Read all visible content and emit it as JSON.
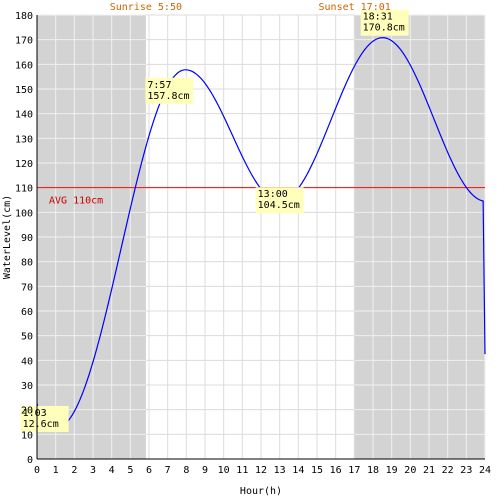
{
  "chart_data": {
    "type": "line",
    "xlabel": "Hour(h)",
    "ylabel": "WaterLevel(cm)",
    "xlim": [
      0,
      24
    ],
    "ylim": [
      0,
      180
    ],
    "x_ticks": [
      0,
      1,
      2,
      3,
      4,
      5,
      6,
      7,
      8,
      9,
      10,
      11,
      12,
      13,
      14,
      15,
      16,
      17,
      18,
      19,
      20,
      21,
      22,
      23,
      24
    ],
    "y_ticks": [
      0,
      10,
      20,
      30,
      40,
      50,
      60,
      70,
      80,
      90,
      100,
      110,
      120,
      130,
      140,
      150,
      160,
      170,
      180
    ],
    "grid": true,
    "sunrise": {
      "label": "Sunrise 5:50",
      "hour": 5.833
    },
    "sunset": {
      "label": "Sunset 17:01",
      "hour": 17.017
    },
    "average": {
      "label": "AVG 110cm",
      "value": 110
    },
    "extremes": [
      {
        "time": "1:03",
        "level": "12.6cm",
        "hour": 1.05,
        "value": 12.6
      },
      {
        "time": "7:57",
        "level": "157.8cm",
        "hour": 7.95,
        "value": 157.8
      },
      {
        "time": "13:00",
        "level": "104.5cm",
        "hour": 13.0,
        "value": 104.5
      },
      {
        "time": "18:31",
        "level": "170.8cm",
        "hour": 18.517,
        "value": 170.8
      }
    ],
    "series": [
      {
        "x": [
          0,
          24
        ],
        "y": [
          22.5,
          42.5
        ]
      }
    ]
  },
  "colors": {
    "night": "#d3d3d3",
    "grid_day": "#dcdcdc",
    "grid_night": "#f0f0f0",
    "line": "#0000ff",
    "avg": "#ff0000",
    "annotation_bg": "#ffffbb",
    "sun_text": "#cc6600"
  }
}
